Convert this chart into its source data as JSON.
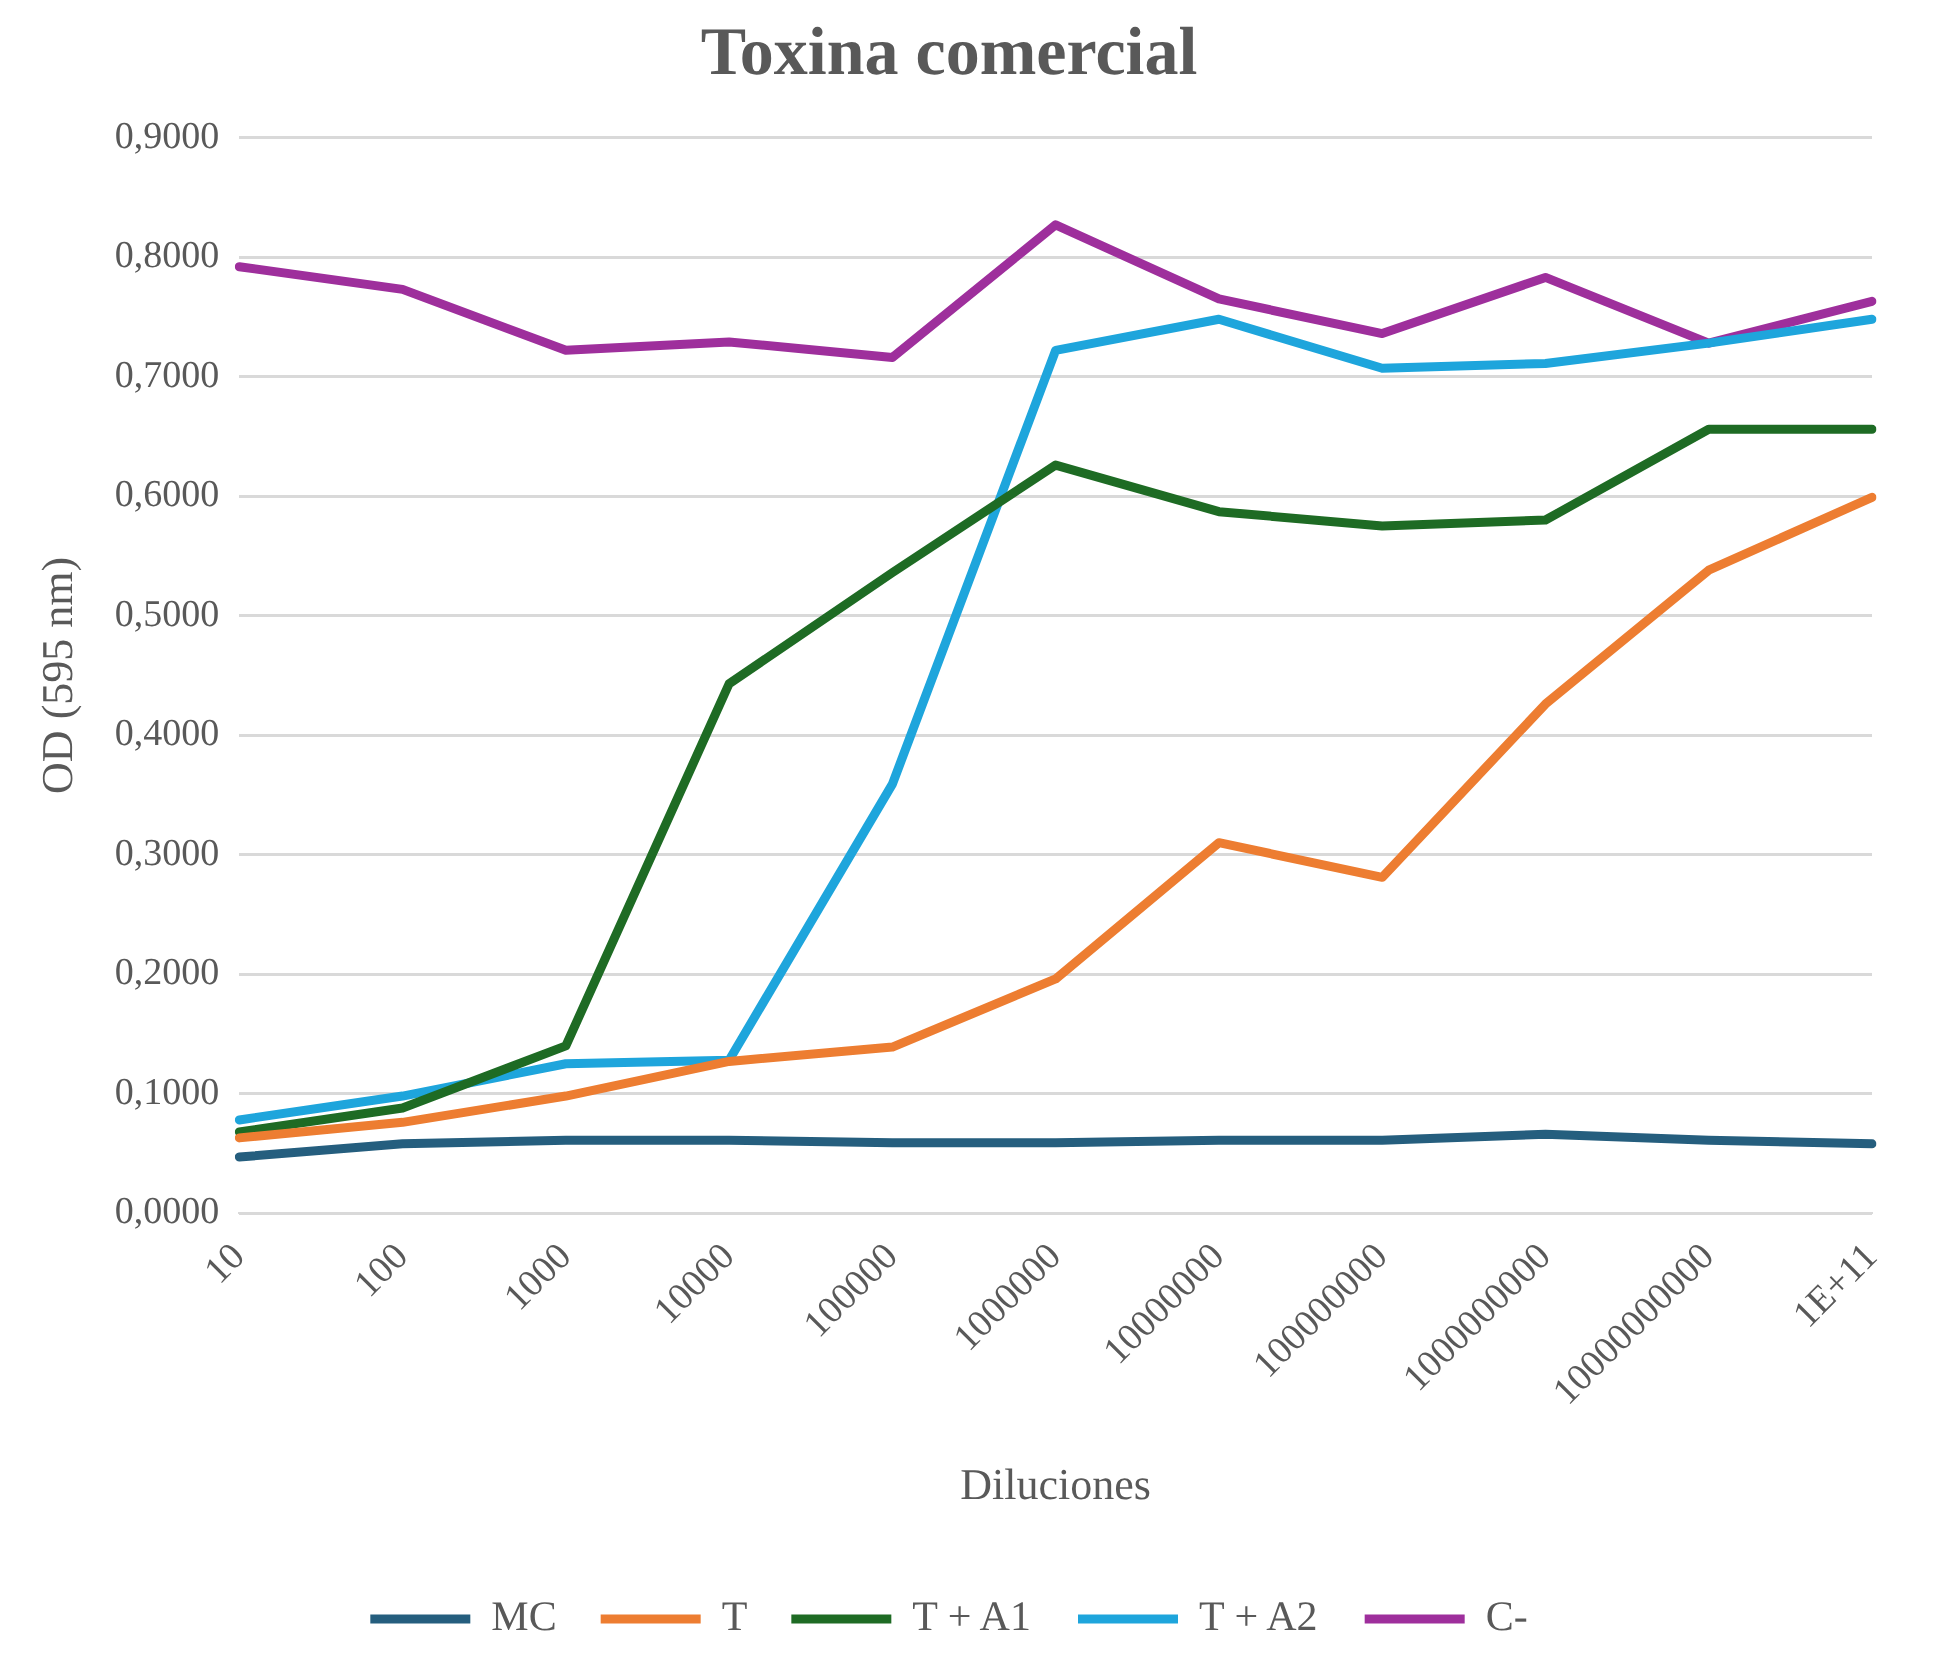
{
  "chart_data": {
    "type": "line",
    "title": "Toxina comercial",
    "xlabel": "Diluciones",
    "ylabel": "OD (595 nm)",
    "categories": [
      "10",
      "100",
      "1000",
      "10000",
      "100000",
      "1000000",
      "10000000",
      "100000000",
      "1000000000",
      "10000000000",
      "1E+11"
    ],
    "series": [
      {
        "name": "MC",
        "color": "#255e7e",
        "values": [
          0.047,
          0.058,
          0.061,
          0.061,
          0.059,
          0.059,
          0.061,
          0.061,
          0.066,
          0.061,
          0.058
        ]
      },
      {
        "name": "T",
        "color": "#ed7d31",
        "values": [
          0.063,
          0.076,
          0.098,
          0.127,
          0.139,
          0.196,
          0.31,
          0.281,
          0.426,
          0.538,
          0.599
        ]
      },
      {
        "name": "T + A1",
        "color": "#1e6b24",
        "values": [
          0.068,
          0.088,
          0.14,
          0.443,
          0.536,
          0.626,
          0.587,
          0.575,
          0.58,
          0.656,
          0.656
        ]
      },
      {
        "name": "T + A2",
        "color": "#1ea5dc",
        "values": [
          0.078,
          0.098,
          0.125,
          0.128,
          0.359,
          0.722,
          0.748,
          0.707,
          0.711,
          0.728,
          0.748
        ]
      },
      {
        "name": "C-",
        "color": "#9e2f9c",
        "values": [
          0.792,
          0.773,
          0.722,
          0.729,
          0.716,
          0.827,
          0.765,
          0.736,
          0.783,
          0.728,
          0.763
        ]
      }
    ],
    "ylim": [
      0,
      0.9
    ],
    "yticks": [
      {
        "value": 0,
        "label": "0,0000"
      },
      {
        "value": 0.1,
        "label": "0,1000"
      },
      {
        "value": 0.2,
        "label": "0,2000"
      },
      {
        "value": 0.3,
        "label": "0,3000"
      },
      {
        "value": 0.4,
        "label": "0,4000"
      },
      {
        "value": 0.5,
        "label": "0,5000"
      },
      {
        "value": 0.6,
        "label": "0,6000"
      },
      {
        "value": 0.7,
        "label": "0,7000"
      },
      {
        "value": 0.8,
        "label": "0,8000"
      },
      {
        "value": 0.9,
        "label": "0,9000"
      }
    ],
    "grid": "y",
    "legend": "bottom",
    "marker": "none",
    "line_style": "solid"
  }
}
